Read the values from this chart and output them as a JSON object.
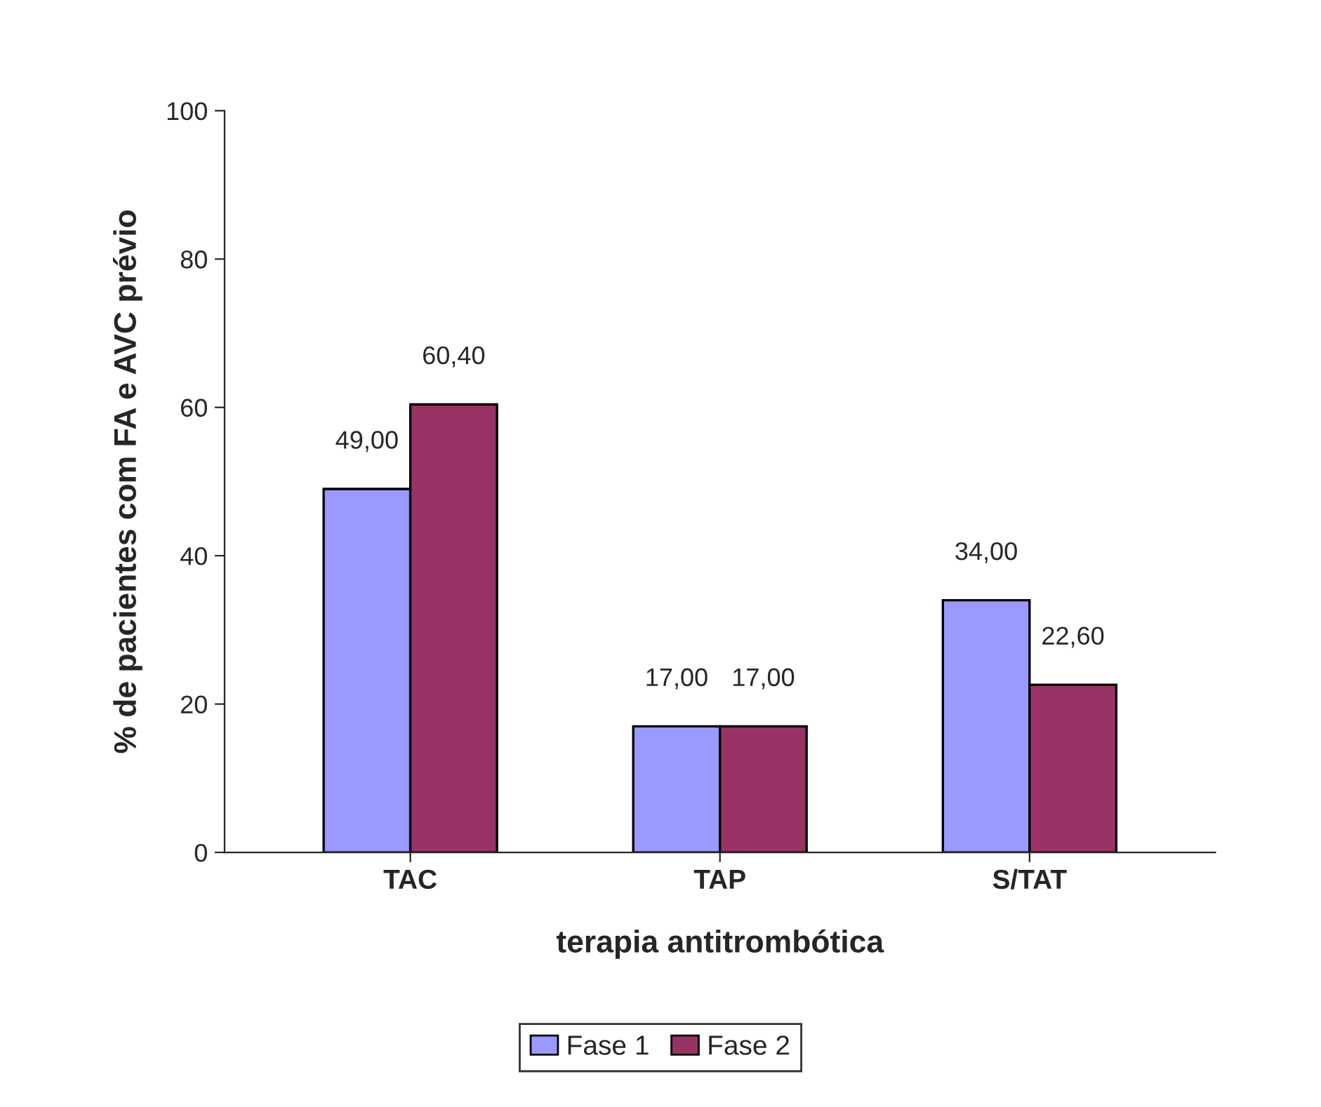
{
  "chart_data": {
    "type": "bar",
    "xlabel": "terapia antitrombótica",
    "ylabel": "% de pacientes com FA e AVC prévio",
    "categories": [
      "TAC",
      "TAP",
      "S/TAT"
    ],
    "series": [
      {
        "name": "Fase 1",
        "color": "#9999ff",
        "values": [
          49,
          17,
          34
        ],
        "value_labels": [
          "49,00",
          "17,00",
          "34,00"
        ]
      },
      {
        "name": "Fase 2",
        "color": "#993366",
        "values": [
          60.4,
          17,
          22.6
        ],
        "value_labels": [
          "60,40",
          "17,00",
          "22,60"
        ]
      }
    ],
    "ylim": [
      0,
      100
    ],
    "yticks": [
      0,
      20,
      40,
      60,
      80,
      100
    ],
    "grid": false,
    "legend": "bottom"
  }
}
